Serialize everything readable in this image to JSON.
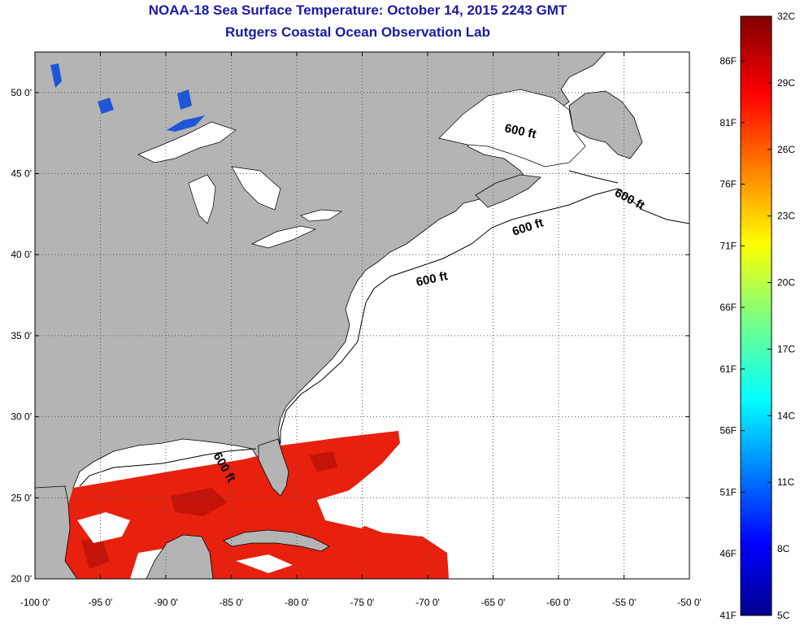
{
  "title": "NOAA-18 Sea Surface Temperature:  October 14, 2015 2243 GMT",
  "subtitle": "Rutgers Coastal Ocean Observation Lab",
  "map": {
    "lon_ticks": [
      "-100 0'",
      "-95 0'",
      "-90 0'",
      "-85 0'",
      "-80 0'",
      "-75 0'",
      "-70 0'",
      "-65 0'",
      "-60 0'",
      "-55 0'",
      "-50 0'"
    ],
    "lon_values": [
      -100,
      -95,
      -90,
      -85,
      -80,
      -75,
      -70,
      -65,
      -60,
      -55,
      -50
    ],
    "lat_ticks": [
      "50 0'",
      "45 0'",
      "40 0'",
      "35 0'",
      "30 0'",
      "25 0'",
      "20 0'"
    ],
    "lat_values": [
      50,
      45,
      40,
      35,
      30,
      25,
      20
    ],
    "lon_range": [
      -100,
      -50
    ],
    "lat_range": [
      20,
      52.5
    ],
    "grid": true,
    "contour_labels": [
      "600 ft",
      "600 ft",
      "600 ft",
      "600 ft",
      "600 ft"
    ],
    "colors": {
      "land": "#b4b4b4",
      "ocean_no_data": "#ffffff",
      "warm_sst": "#e8200e",
      "grid": "#555555"
    }
  },
  "colorbar": {
    "celsius_labels": [
      "32C",
      "29C",
      "26C",
      "23C",
      "20C",
      "17C",
      "14C",
      "11C",
      "8C",
      "5C"
    ],
    "fahrenheit_labels": [
      "86F",
      "81F",
      "76F",
      "71F",
      "66F",
      "61F",
      "56F",
      "51F",
      "46F",
      "41F"
    ],
    "range_c": [
      5,
      32
    ],
    "colormap": "jet"
  }
}
